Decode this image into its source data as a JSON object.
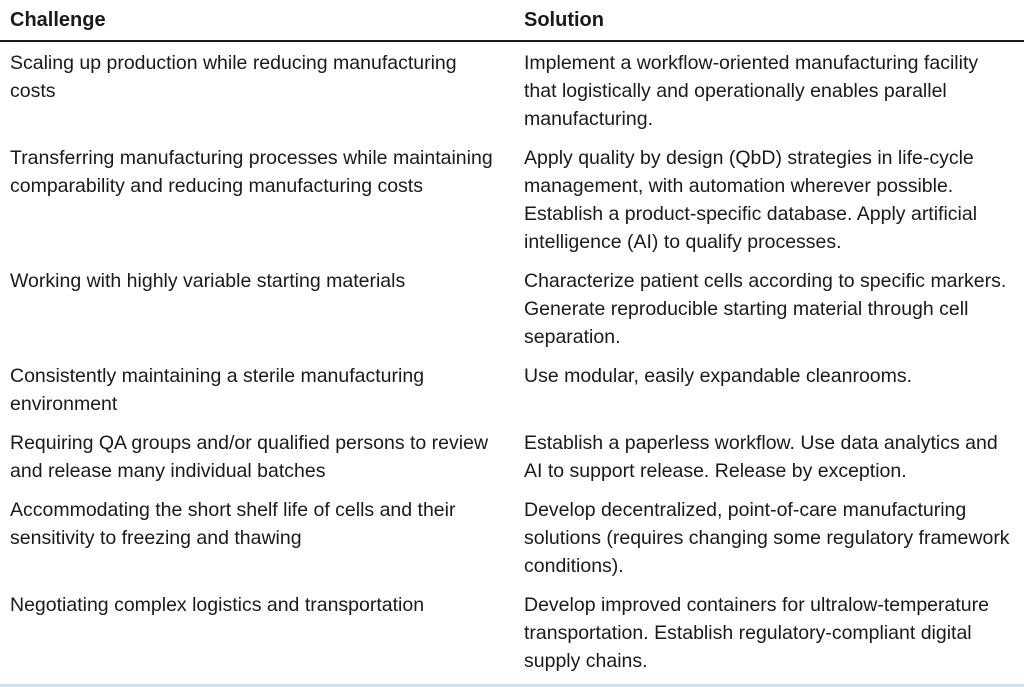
{
  "header": {
    "challenge": "Challenge",
    "solution": "Solution"
  },
  "rows": [
    {
      "challenge": "Scaling up production while reducing manufacturing costs",
      "solution": "Implement a workflow-oriented manufacturing facility that logistically and operationally enables parallel manufacturing."
    },
    {
      "challenge": "Transferring manufacturing processes while maintaining comparability and reducing manufacturing costs",
      "solution": "Apply quality by design (QbD) strategies in life-cycle management, with automation wherever possible. Establish a product-specific database. Apply artificial intelligence (AI) to qualify processes."
    },
    {
      "challenge": "Working with highly variable starting materials",
      "solution": "Characterize patient cells according to specific markers. Generate reproducible starting material through cell separation."
    },
    {
      "challenge": "Consistently maintaining a sterile manufacturing environment",
      "solution": "Use modular, easily expandable cleanrooms."
    },
    {
      "challenge": "Requiring QA groups and/or qualified persons to review and release many individual batches",
      "solution": "Establish a paperless workflow. Use data analytics and AI to support release. Release by exception."
    },
    {
      "challenge": "Accommodating the short shelf life of cells and their sensitivity to freezing and thawing",
      "solution": "Develop decentralized, point-of-care manufacturing solutions (requires changing some regulatory framework conditions)."
    },
    {
      "challenge": "Negotiating complex logistics and transportation",
      "solution": "Develop improved containers for ultralow-temperature transportation. Establish regulatory-compliant digital supply chains."
    }
  ]
}
